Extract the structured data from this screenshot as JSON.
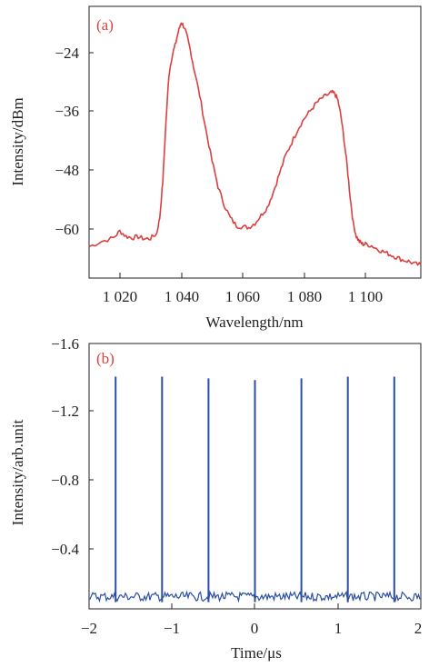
{
  "chart_data": [
    {
      "type": "line",
      "panel_label": "(a)",
      "xlabel": "Wavelength/nm",
      "ylabel": "Intensity/dBm",
      "xlim": [
        1010,
        1118
      ],
      "ylim": [
        -69.5,
        -17.5
      ],
      "x_ticks": [
        1020,
        1040,
        1060,
        1080,
        1100
      ],
      "x_tick_labels": [
        "1 020",
        "1 040",
        "1 060",
        "1 080",
        "1 100"
      ],
      "y_ticks": [
        -24,
        -36,
        -48,
        -60
      ],
      "y_tick_labels": [
        "−24",
        "−36",
        "−48",
        "−60"
      ],
      "grid": false,
      "line_color": "#d9403f",
      "series": [
        {
          "x": [
            1010,
            1014,
            1018,
            1020,
            1022,
            1024,
            1026,
            1028,
            1030,
            1032,
            1033,
            1034,
            1035,
            1036,
            1037,
            1038,
            1039,
            1040,
            1041,
            1042,
            1043,
            1044,
            1046,
            1048,
            1050,
            1052,
            1054,
            1056,
            1058,
            1060,
            1062,
            1064,
            1066,
            1068,
            1070,
            1072,
            1074,
            1076,
            1078,
            1080,
            1082,
            1084,
            1086,
            1088,
            1089,
            1090,
            1091,
            1092,
            1093,
            1094,
            1095,
            1096,
            1097,
            1098,
            1099,
            1100,
            1102,
            1104,
            1106,
            1108,
            1110,
            1112,
            1114,
            1116,
            1118
          ],
          "y": [
            -63.5,
            -62.5,
            -61.8,
            -60.5,
            -61.5,
            -61.8,
            -61.6,
            -62.0,
            -61.9,
            -61.0,
            -58.0,
            -51.0,
            -40.0,
            -30.5,
            -27.0,
            -25.0,
            -22.5,
            -20.5,
            -21.5,
            -23.5,
            -26.0,
            -29.0,
            -34.5,
            -41.0,
            -47.0,
            -52.0,
            -55.5,
            -58.0,
            -59.5,
            -59.7,
            -59.8,
            -59.0,
            -57.5,
            -56.0,
            -53.0,
            -49.5,
            -46.0,
            -43.5,
            -41.0,
            -39.0,
            -37.5,
            -36.0,
            -35.0,
            -34.3,
            -34.0,
            -34.2,
            -35.5,
            -38.5,
            -43.0,
            -48.0,
            -54.0,
            -59.0,
            -61.5,
            -62.5,
            -63.0,
            -63.0,
            -63.3,
            -64.0,
            -64.5,
            -65.0,
            -65.5,
            -66.0,
            -66.3,
            -66.8,
            -67.0
          ]
        }
      ]
    },
    {
      "type": "line",
      "panel_label": "(b)",
      "xlabel": "Time/μs",
      "ylabel": "Intensity/arb.unit",
      "xlim": [
        -2,
        2
      ],
      "ylim": [
        -0.08,
        -1.6
      ],
      "x_ticks": [
        -2,
        -1,
        0,
        1,
        2
      ],
      "x_tick_labels": [
        "−2",
        "−1",
        "0",
        "1",
        "2"
      ],
      "y_ticks": [
        -1.6,
        -1.2,
        -0.8,
        -0.4
      ],
      "y_tick_labels": [
        "−1.6",
        "−1.2",
        "−0.8",
        "−0.4"
      ],
      "grid": false,
      "line_color": "#2b4fa3",
      "baseline": -0.15,
      "pulses": [
        {
          "t": -1.68,
          "peak": -1.41
        },
        {
          "t": -1.12,
          "peak": -1.41
        },
        {
          "t": -0.56,
          "peak": -1.4
        },
        {
          "t": 0.0,
          "peak": -1.39
        },
        {
          "t": 0.56,
          "peak": -1.4
        },
        {
          "t": 1.12,
          "peak": -1.41
        },
        {
          "t": 1.68,
          "peak": -1.41
        }
      ]
    }
  ]
}
